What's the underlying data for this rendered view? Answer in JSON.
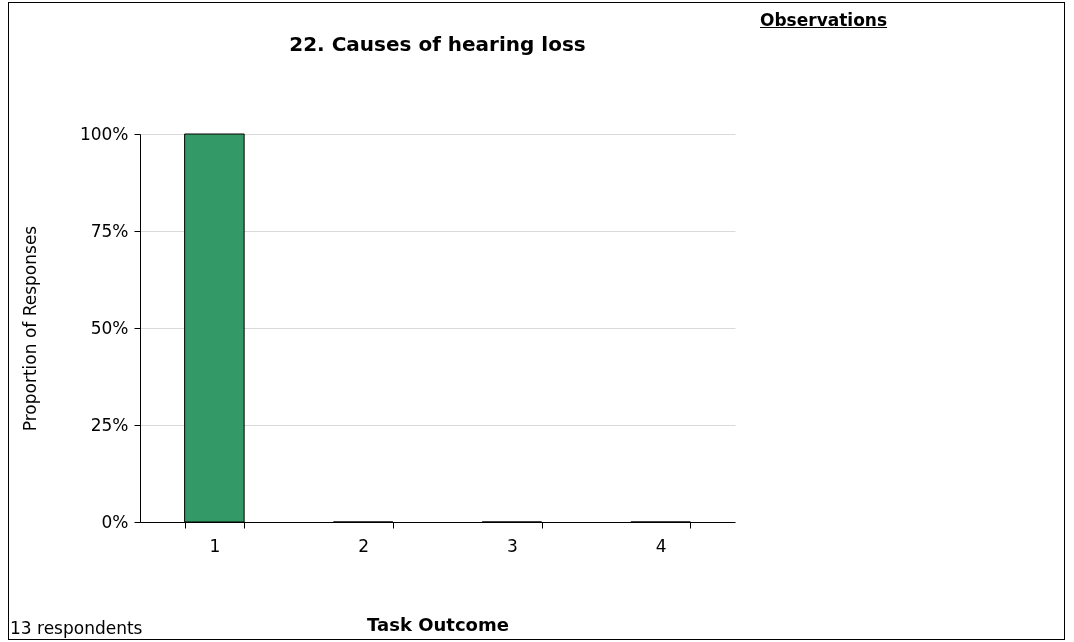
{
  "chart_data": {
    "type": "bar",
    "title": "22. Causes of hearing loss",
    "xlabel": "Task Outcome",
    "ylabel": "Proportion of Responses",
    "categories": [
      "1",
      "2",
      "3",
      "4"
    ],
    "values": [
      100,
      0,
      0,
      0
    ],
    "color": "#339966",
    "ylim": [
      0,
      100
    ],
    "yticks": [
      {
        "value": 0,
        "label": "0%"
      },
      {
        "value": 25,
        "label": "25%"
      },
      {
        "value": 50,
        "label": "50%"
      },
      {
        "value": 75,
        "label": "75%"
      },
      {
        "value": 100,
        "label": "100%"
      }
    ],
    "grid": "y",
    "annotations": [
      "Observations",
      "13 respondents"
    ]
  }
}
